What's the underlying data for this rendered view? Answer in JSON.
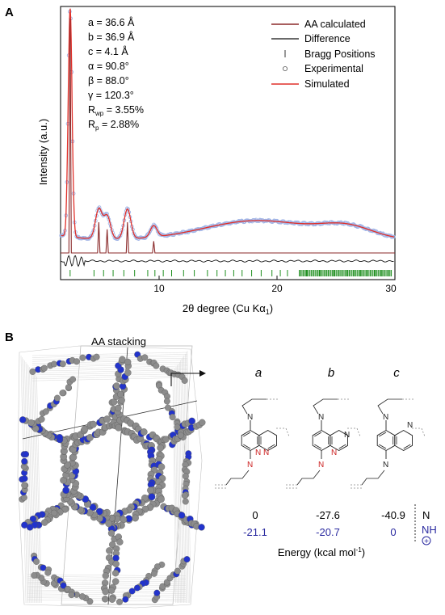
{
  "panel_a": {
    "label": "A",
    "params": [
      "a = 36.6 Å",
      "b = 36.9 Å",
      "c = 4.1 Å",
      "α = 90.8°",
      "β = 88.0°",
      "γ = 120.3°"
    ],
    "r_wp_label": "R",
    "r_wp_sub": "wp",
    "r_wp_value": " = 3.55%",
    "r_p_label": "R",
    "r_p_sub": "p",
    "r_p_value": " = 2.88%",
    "legend": {
      "aa_calculated": "AA calculated",
      "difference": "Difference",
      "bragg": "Bragg Positions",
      "experimental": "Experimental",
      "simulated": "Simulated"
    },
    "colors": {
      "aa_calculated": "#8b2a2a",
      "difference": "#111111",
      "bragg": "#1f8f1f",
      "experimental": "#9fb3e6",
      "simulated": "#e0302a"
    }
  },
  "chart_data": {
    "type": "line",
    "xlabel": "2θ degree (Cu Kα1)",
    "ylabel": "Intensity (a.u.)",
    "xlim": [
      2,
      30
    ],
    "xticks": [
      10,
      20,
      30
    ],
    "peaks": [
      {
        "x": 2.8,
        "height": 1.0
      },
      {
        "x": 5.2,
        "height": 0.13
      },
      {
        "x": 5.9,
        "height": 0.1
      },
      {
        "x": 7.6,
        "height": 0.13
      },
      {
        "x": 9.8,
        "height": 0.05
      },
      {
        "x": 26.0,
        "height": 0.05
      }
    ],
    "bragg_positions": [
      2.8,
      4.8,
      5.6,
      6.4,
      7.3,
      8.2,
      9.3,
      9.9,
      10.6,
      11.3,
      12.3,
      13.2,
      14.3,
      15.1,
      15.8,
      16.5,
      17.2,
      18.0,
      18.8,
      19.7,
      20.4,
      21.0,
      22.0,
      22.6,
      23.1,
      23.7,
      24.3,
      24.9,
      25.4,
      26.0,
      26.6,
      27.1,
      27.7,
      28.3,
      28.9,
      29.5
    ]
  },
  "panel_b": {
    "label": "B",
    "stacking_label": "AA stacking",
    "columns": [
      "a",
      "b",
      "c"
    ],
    "energy_row_n": [
      "0",
      "-27.6",
      "-40.9"
    ],
    "energy_row_nh": [
      "-21.1",
      "-20.7",
      "0"
    ],
    "row_label_n": "N",
    "row_label_nh": "NH",
    "plus_symbol": "+",
    "energy_label": "Energy (kcal mol",
    "energy_sup": "-1",
    "energy_close": ")",
    "colors": {
      "nh_values": "#2a2aa0",
      "red_n": "#cc2222",
      "framework_blue": "#2233cc",
      "framework_gray": "#8c8c8c"
    }
  }
}
